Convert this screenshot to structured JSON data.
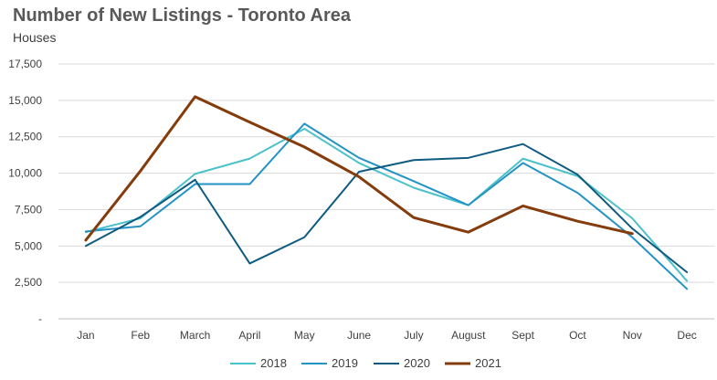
{
  "chart_data": {
    "type": "line",
    "title": "Number of New Listings - Toronto Area",
    "subtitle": "Houses",
    "xlabel": "",
    "ylabel": "",
    "categories": [
      "Jan",
      "Feb",
      "March",
      "April",
      "May",
      "June",
      "July",
      "August",
      "Sept",
      "Oct",
      "Nov",
      "Dec"
    ],
    "ylim": [
      0,
      17500
    ],
    "yticks": [
      0,
      2500,
      5000,
      7500,
      10000,
      12500,
      15000,
      17500
    ],
    "ytick_labels": [
      "-",
      "2,500",
      "5,000",
      "7,500",
      "10,000",
      "12,500",
      "15,000",
      "17,500"
    ],
    "grid": true,
    "legend_position": "bottom",
    "series": [
      {
        "name": "2018",
        "color": "#4bc1c9",
        "width": 2,
        "values": [
          5950,
          6900,
          9950,
          11000,
          13050,
          10700,
          9000,
          7800,
          11000,
          9800,
          6900,
          2600
        ]
      },
      {
        "name": "2019",
        "color": "#2393c6",
        "width": 2,
        "values": [
          6000,
          6350,
          9250,
          9250,
          13400,
          11050,
          9450,
          7800,
          10700,
          8650,
          5600,
          2050
        ]
      },
      {
        "name": "2020",
        "color": "#0f5b80",
        "width": 2,
        "values": [
          5000,
          7000,
          9550,
          3800,
          5600,
          10100,
          10900,
          11050,
          12000,
          9900,
          6200,
          3200
        ]
      },
      {
        "name": "2021",
        "color": "#843c0c",
        "width": 3,
        "values": [
          5400,
          10150,
          15250,
          13500,
          11800,
          9750,
          6950,
          5950,
          7750,
          6700,
          5850,
          null
        ]
      }
    ]
  }
}
